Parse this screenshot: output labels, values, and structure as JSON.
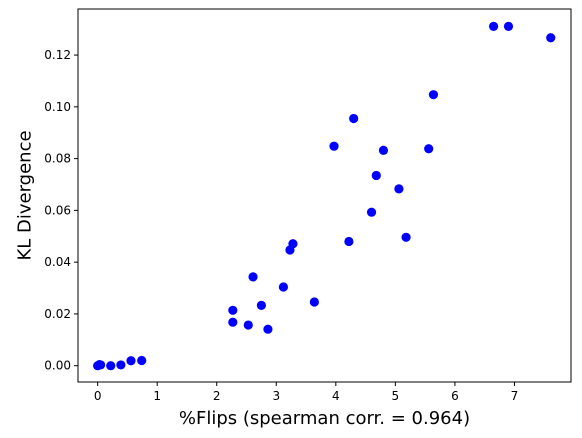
{
  "chart_data": {
    "type": "scatter",
    "title": "",
    "xlabel": "%Flips (spearman corr. = 0.964)",
    "ylabel": "KL Divergence",
    "xlim": [
      -0.33,
      7.95
    ],
    "ylim": [
      -0.0063,
      0.1378
    ],
    "xticks": [
      0,
      1,
      2,
      3,
      4,
      5,
      6,
      7
    ],
    "yticks": [
      0.0,
      0.02,
      0.04,
      0.06,
      0.08,
      0.1,
      0.12
    ],
    "ytick_labels": [
      "0.00",
      "0.02",
      "0.04",
      "0.06",
      "0.08",
      "0.10",
      "0.12"
    ],
    "marker_color": "#0000ff",
    "grid": false,
    "points": [
      {
        "x": 0.0,
        "y": 0.0
      },
      {
        "x": 0.03,
        "y": 0.0004
      },
      {
        "x": 0.05,
        "y": 0.0003
      },
      {
        "x": 0.22,
        "y": 0.0
      },
      {
        "x": 0.39,
        "y": 0.0003
      },
      {
        "x": 0.56,
        "y": 0.0019
      },
      {
        "x": 0.74,
        "y": 0.002
      },
      {
        "x": 2.27,
        "y": 0.0214
      },
      {
        "x": 2.27,
        "y": 0.0168
      },
      {
        "x": 2.53,
        "y": 0.0157
      },
      {
        "x": 2.61,
        "y": 0.0343
      },
      {
        "x": 2.75,
        "y": 0.0233
      },
      {
        "x": 2.86,
        "y": 0.0141
      },
      {
        "x": 3.12,
        "y": 0.0304
      },
      {
        "x": 3.23,
        "y": 0.0447
      },
      {
        "x": 3.28,
        "y": 0.0471
      },
      {
        "x": 3.64,
        "y": 0.0246
      },
      {
        "x": 3.97,
        "y": 0.0848
      },
      {
        "x": 4.22,
        "y": 0.048
      },
      {
        "x": 4.3,
        "y": 0.0955
      },
      {
        "x": 4.6,
        "y": 0.0593
      },
      {
        "x": 4.68,
        "y": 0.0735
      },
      {
        "x": 4.8,
        "y": 0.0832
      },
      {
        "x": 5.06,
        "y": 0.0683
      },
      {
        "x": 5.18,
        "y": 0.0496
      },
      {
        "x": 5.56,
        "y": 0.0838
      },
      {
        "x": 5.64,
        "y": 0.1047
      },
      {
        "x": 6.65,
        "y": 0.1311
      },
      {
        "x": 6.9,
        "y": 0.1311
      },
      {
        "x": 7.61,
        "y": 0.1267
      }
    ]
  }
}
